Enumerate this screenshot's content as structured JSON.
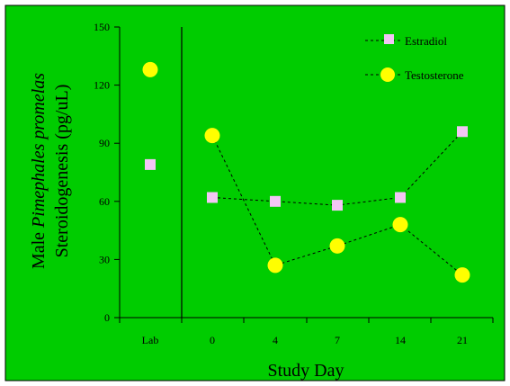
{
  "colors": {
    "background": "#00cc00",
    "estradiol_marker": "#f2c6f5",
    "testosterone_marker": "#ffff00",
    "axis": "#000000"
  },
  "chart_data": {
    "type": "scatter",
    "title": "",
    "xlabel": "Study Day",
    "ylabel": {
      "prefix": "Male ",
      "species_italic": "Pimephales promelas",
      "line2": "Steroidogenesis (pg/uL)"
    },
    "categories": [
      "Lab",
      "0",
      "4",
      "7",
      "14",
      "21"
    ],
    "ylim": [
      0,
      150
    ],
    "yticks": [
      0,
      30,
      60,
      90,
      120,
      150
    ],
    "grid": false,
    "legend_position": "top-right",
    "series": [
      {
        "name": "Estradiol",
        "marker": "square",
        "values": [
          79,
          62,
          60,
          58,
          62,
          96
        ],
        "connect_from_index": 1
      },
      {
        "name": "Testosterone",
        "marker": "circle",
        "values": [
          128,
          94,
          27,
          37,
          48,
          22
        ],
        "connect_from_index": 1
      }
    ]
  }
}
